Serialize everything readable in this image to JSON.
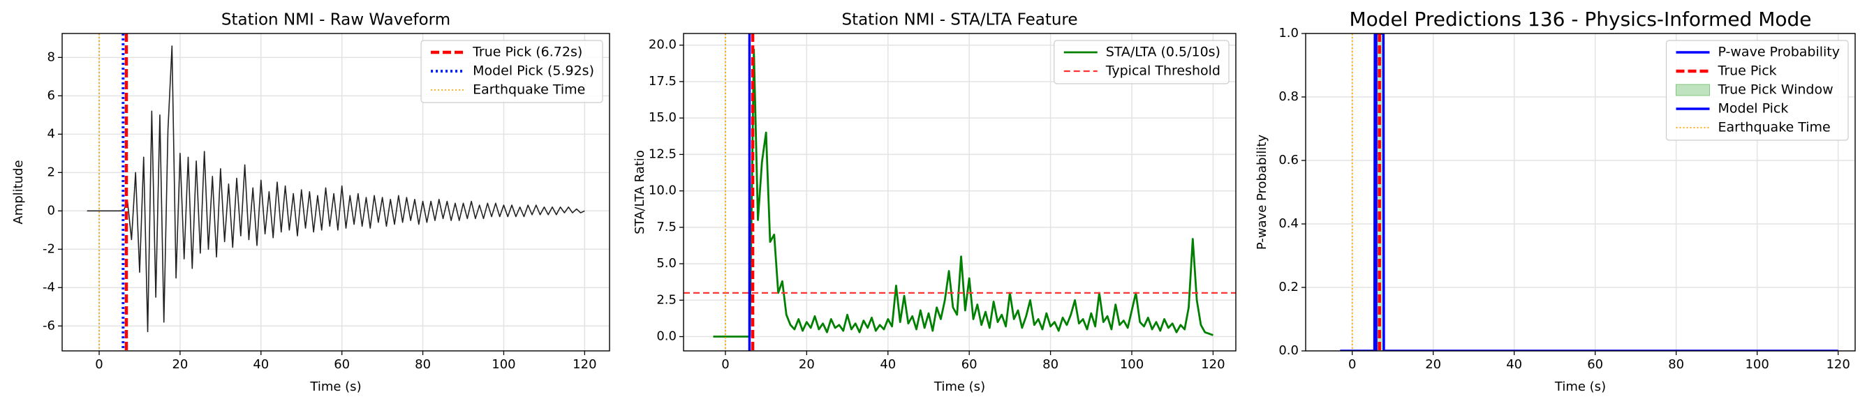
{
  "chart_data": [
    {
      "type": "line",
      "title": "Station NMI - Raw Waveform",
      "xlabel": "Time (s)",
      "ylabel": "Amplitude",
      "xlim": [
        -9.15,
        126.15
      ],
      "ylim": [
        -7.3,
        9.25
      ],
      "xticks": [
        0,
        20,
        40,
        60,
        80,
        100,
        120
      ],
      "yticks": [
        -6,
        -4,
        -2,
        0,
        2,
        4,
        6,
        8
      ],
      "grid": true,
      "legend": "upper right",
      "x": [
        -3,
        6,
        7,
        8,
        9,
        10,
        11,
        12,
        13,
        14,
        15,
        16,
        17,
        18,
        19,
        20,
        21,
        22,
        23,
        24,
        25,
        26,
        27,
        28,
        29,
        30,
        31,
        32,
        33,
        34,
        35,
        36,
        37,
        38,
        39,
        40,
        41,
        42,
        43,
        44,
        45,
        46,
        47,
        48,
        49,
        50,
        51,
        52,
        53,
        54,
        55,
        56,
        57,
        58,
        59,
        60,
        61,
        62,
        63,
        64,
        65,
        66,
        67,
        68,
        69,
        70,
        71,
        72,
        73,
        74,
        75,
        76,
        77,
        78,
        79,
        80,
        81,
        82,
        83,
        84,
        85,
        86,
        87,
        88,
        89,
        90,
        91,
        92,
        93,
        94,
        95,
        96,
        97,
        98,
        99,
        100,
        101,
        102,
        103,
        104,
        105,
        106,
        107,
        108,
        109,
        110,
        111,
        112,
        113,
        114,
        115,
        116,
        117,
        118,
        119,
        120
      ],
      "series": [
        {
          "color": "#222222",
          "values": [
            0,
            0,
            0.5,
            -1.5,
            2.0,
            -3.2,
            2.8,
            -6.3,
            5.2,
            -4.5,
            5.0,
            -5.8,
            4.2,
            8.6,
            -3.5,
            3.0,
            -2.5,
            2.8,
            -3.0,
            2.6,
            -2.2,
            3.1,
            -2.0,
            1.8,
            -2.4,
            2.2,
            -1.6,
            1.4,
            -1.9,
            1.7,
            -1.3,
            2.4,
            -1.5,
            1.2,
            -1.8,
            1.6,
            -1.2,
            1.0,
            -1.4,
            1.5,
            -1.1,
            1.3,
            -1.0,
            0.9,
            -1.3,
            1.1,
            -0.9,
            1.0,
            -1.1,
            0.8,
            -1.0,
            1.2,
            -0.8,
            0.9,
            -1.0,
            1.3,
            -0.9,
            0.8,
            -0.7,
            0.9,
            -0.8,
            0.7,
            -0.9,
            0.8,
            -0.6,
            0.7,
            -0.8,
            0.6,
            -0.7,
            0.8,
            -0.6,
            0.7,
            -0.5,
            0.6,
            -0.7,
            0.5,
            -0.6,
            0.5,
            -0.5,
            0.6,
            -0.4,
            0.5,
            -0.5,
            0.4,
            -0.5,
            0.4,
            -0.4,
            0.5,
            -0.4,
            0.3,
            -0.4,
            0.4,
            -0.3,
            0.4,
            -0.3,
            0.3,
            -0.3,
            0.3,
            -0.3,
            0.2,
            -0.3,
            0.3,
            -0.2,
            0.3,
            -0.2,
            0.2,
            -0.2,
            0.2,
            -0.2,
            0.2,
            -0.1,
            0.2,
            -0.1,
            0.1,
            -0.1,
            0
          ]
        }
      ],
      "overlays": [
        {
          "kind": "vline",
          "name": "True Pick (6.72s)",
          "x": 6.72,
          "color": "#ff0000",
          "style": "dashed"
        },
        {
          "kind": "vline",
          "name": "Model Pick (5.92s)",
          "x": 5.92,
          "color": "#0022ff",
          "style": "dotted"
        },
        {
          "kind": "vline",
          "name": "Earthquake Time",
          "x": 0,
          "color": "#ffa500",
          "style": "dotted-thin"
        }
      ]
    },
    {
      "type": "line",
      "title": "Station NMI - STA/LTA Feature",
      "xlabel": "Time (s)",
      "ylabel": "STA/LTA Ratio",
      "xlim": [
        -10.3,
        125.6
      ],
      "ylim": [
        -0.98,
        20.8
      ],
      "xticks": [
        0,
        20,
        40,
        60,
        80,
        100,
        120
      ],
      "yticks": [
        {
          "value": 0,
          "label": "0.0"
        },
        {
          "value": 2.5,
          "label": "2.5"
        },
        {
          "value": 5,
          "label": "5.0"
        },
        {
          "value": 7.5,
          "label": "7.5"
        },
        {
          "value": 10,
          "label": "10.0"
        },
        {
          "value": 12.5,
          "label": "12.5"
        },
        {
          "value": 15,
          "label": "15.0"
        },
        {
          "value": 17.5,
          "label": "17.5"
        },
        {
          "value": 20,
          "label": "20.0"
        }
      ],
      "grid": true,
      "legend": "upper right",
      "x": [
        -3,
        6,
        7,
        8,
        9,
        10,
        11,
        12,
        13,
        14,
        15,
        16,
        17,
        18,
        19,
        20,
        21,
        22,
        23,
        24,
        25,
        26,
        27,
        28,
        29,
        30,
        31,
        32,
        33,
        34,
        35,
        36,
        37,
        38,
        39,
        40,
        41,
        42,
        43,
        44,
        45,
        46,
        47,
        48,
        49,
        50,
        51,
        52,
        53,
        54,
        55,
        56,
        57,
        58,
        59,
        60,
        61,
        62,
        63,
        64,
        65,
        66,
        67,
        68,
        69,
        70,
        71,
        72,
        73,
        74,
        75,
        76,
        77,
        78,
        79,
        80,
        81,
        82,
        83,
        84,
        85,
        86,
        87,
        88,
        89,
        90,
        91,
        92,
        93,
        94,
        95,
        96,
        97,
        98,
        99,
        100,
        101,
        102,
        103,
        104,
        105,
        106,
        107,
        108,
        109,
        110,
        111,
        112,
        113,
        114,
        115,
        116,
        117,
        118,
        119,
        120
      ],
      "series": [
        {
          "name": "STA/LTA (0.5/10s)",
          "color": "#008000",
          "values": [
            0,
            0,
            19.7,
            8.0,
            12.0,
            14.0,
            6.5,
            7.0,
            3.0,
            3.8,
            1.5,
            0.8,
            0.5,
            1.2,
            0.4,
            1.0,
            0.6,
            1.4,
            0.5,
            0.9,
            0.3,
            1.2,
            0.6,
            0.8,
            0.4,
            1.5,
            0.5,
            0.9,
            0.3,
            1.1,
            0.6,
            1.3,
            0.4,
            0.8,
            0.5,
            1.2,
            0.7,
            3.5,
            1.0,
            2.8,
            0.9,
            1.4,
            0.5,
            1.8,
            0.6,
            1.6,
            0.4,
            2.0,
            1.2,
            2.5,
            4.5,
            2.0,
            1.5,
            5.5,
            1.8,
            4.0,
            1.2,
            2.2,
            0.8,
            1.7,
            0.6,
            2.4,
            1.0,
            1.5,
            0.7,
            3.0,
            1.2,
            1.8,
            0.6,
            1.4,
            2.5,
            0.8,
            1.2,
            0.5,
            1.6,
            0.7,
            1.0,
            0.4,
            1.3,
            0.8,
            1.5,
            2.5,
            0.9,
            1.2,
            0.5,
            1.6,
            0.7,
            3.0,
            1.0,
            1.4,
            0.5,
            2.2,
            0.8,
            1.1,
            0.6,
            1.8,
            3.0,
            1.0,
            0.7,
            1.3,
            0.5,
            1.0,
            0.4,
            1.2,
            0.6,
            0.9,
            0.3,
            0.8,
            0.5,
            2.0,
            6.7,
            2.5,
            0.8,
            0.3,
            0.2,
            0.1
          ]
        }
      ],
      "overlays": [
        {
          "kind": "hline",
          "name": "Typical Threshold",
          "y": 3,
          "color": "#ff3333",
          "style": "dashed-thin"
        },
        {
          "kind": "vline",
          "x": 0,
          "color": "#ffa500",
          "style": "dotted-thin"
        },
        {
          "kind": "vline",
          "x": 5.92,
          "color": "#0000ff",
          "style": "solid"
        },
        {
          "kind": "vline",
          "x": 6.72,
          "color": "#ff0000",
          "style": "dashed"
        }
      ]
    },
    {
      "type": "line",
      "title": "Model Predictions 136 - Physics-Informed Mode",
      "xlabel": "Time (s)",
      "ylabel": "P-wave Probability",
      "xlim": [
        -11.5,
        124.2
      ],
      "ylim": [
        0,
        1
      ],
      "xticks": [
        0,
        20,
        40,
        60,
        80,
        100,
        120
      ],
      "yticks": [
        {
          "value": 0,
          "label": "0.0"
        },
        {
          "value": 0.2,
          "label": "0.2"
        },
        {
          "value": 0.4,
          "label": "0.4"
        },
        {
          "value": 0.6,
          "label": "0.6"
        },
        {
          "value": 0.8,
          "label": "0.8"
        },
        {
          "value": 1,
          "label": "1.0"
        }
      ],
      "grid": true,
      "legend": "upper right",
      "x": [
        -3,
        5.5,
        5.6,
        7.7,
        7.8,
        120
      ],
      "series": [
        {
          "name": "P-wave Probability",
          "color": "#0000ff",
          "values": [
            0,
            0,
            1,
            1,
            0,
            0
          ]
        }
      ],
      "overlays": [
        {
          "kind": "vline",
          "name": "True Pick",
          "x": 6.72,
          "color": "#ff0000",
          "style": "dashed"
        },
        {
          "kind": "span",
          "name": "True Pick Window",
          "x": [
            5.72,
            7.72
          ],
          "color": "#2ca02c"
        },
        {
          "kind": "vline",
          "name": "Model Pick",
          "x": 5.92,
          "color": "#0000ff",
          "style": "solid"
        },
        {
          "kind": "vline",
          "name": "Earthquake Time",
          "x": 0,
          "color": "#ffa500",
          "style": "dotted-thin"
        }
      ]
    }
  ]
}
